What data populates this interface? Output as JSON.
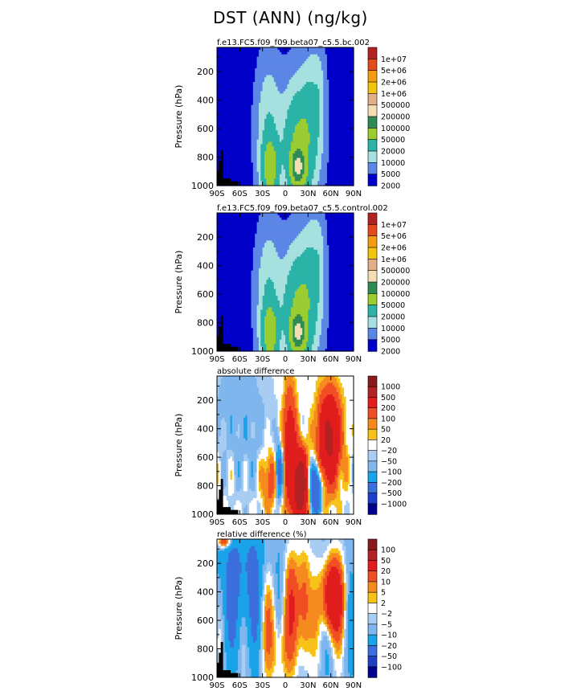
{
  "page": {
    "title": "DST (ANN) (ng/kg)"
  },
  "chart_data": [
    {
      "type": "heatmap",
      "title": "f.e13.FC5.f09_f09.beta07_c5.5.bc.002",
      "ylabel": "Pressure (hPa)",
      "xlim": [
        -90,
        90
      ],
      "ylim": [
        1000,
        30
      ],
      "x_ticks": [
        "90S",
        "60S",
        "30S",
        "0",
        "30N",
        "60N",
        "90N"
      ],
      "y_ticks": [
        "200",
        "400",
        "600",
        "800",
        "1000"
      ],
      "legend": {
        "placement": "right",
        "labels": [
          "1e+07",
          "5e+06",
          "2e+06",
          "1e+06",
          "500000",
          "200000",
          "100000",
          "50000",
          "20000",
          "10000",
          "5000",
          "2000"
        ],
        "colors": [
          "#b22222",
          "#e34a1c",
          "#f39c12",
          "#f1c40f",
          "#e0b08a",
          "#f5deb3",
          "#2e8b57",
          "#9acd32",
          "#2ab3a6",
          "#a6e1e0",
          "#5c86e6",
          "#0000c8"
        ]
      },
      "field": "base",
      "contour_levels": [
        2000,
        5000,
        10000,
        20000,
        50000,
        100000,
        200000,
        500000,
        1000000,
        2000000,
        5000000,
        10000000
      ]
    },
    {
      "type": "heatmap",
      "title": "f.e13.FC5.f09_f09.beta07_c5.5.control.002",
      "ylabel": "Pressure (hPa)",
      "xlim": [
        -90,
        90
      ],
      "ylim": [
        1000,
        30
      ],
      "x_ticks": [
        "90S",
        "60S",
        "30S",
        "0",
        "30N",
        "60N",
        "90N"
      ],
      "y_ticks": [
        "200",
        "400",
        "600",
        "800",
        "1000"
      ],
      "legend": {
        "placement": "right",
        "labels": [
          "1e+07",
          "5e+06",
          "2e+06",
          "1e+06",
          "500000",
          "200000",
          "100000",
          "50000",
          "20000",
          "10000",
          "5000",
          "2000"
        ],
        "colors": [
          "#b22222",
          "#e34a1c",
          "#f39c12",
          "#f1c40f",
          "#e0b08a",
          "#f5deb3",
          "#2e8b57",
          "#9acd32",
          "#2ab3a6",
          "#a6e1e0",
          "#5c86e6",
          "#0000c8"
        ]
      },
      "field": "base",
      "contour_levels": [
        2000,
        5000,
        10000,
        20000,
        50000,
        100000,
        200000,
        500000,
        1000000,
        2000000,
        5000000,
        10000000
      ]
    },
    {
      "type": "heatmap",
      "title": "absolute difference",
      "ylabel": "Pressure (hPa)",
      "xlim": [
        -90,
        90
      ],
      "ylim": [
        1000,
        30
      ],
      "x_ticks": [
        "90S",
        "60S",
        "30S",
        "0",
        "30N",
        "60N",
        "90N"
      ],
      "y_ticks": [
        "200",
        "400",
        "600",
        "800",
        "1000"
      ],
      "legend": {
        "placement": "right",
        "labels": [
          "1000",
          "500",
          "200",
          "100",
          "50",
          "20",
          "−20",
          "−50",
          "−100",
          "−200",
          "−500",
          "−1000"
        ],
        "colors": [
          "#8b1a1a",
          "#b22222",
          "#e11d1d",
          "#f04e23",
          "#f58b1f",
          "#f6c21b",
          "#ffffff",
          "#a9cdf2",
          "#7fb6ee",
          "#1aa3e8",
          "#3a6fdc",
          "#1f3fc8",
          "#00008b"
        ]
      },
      "field": "diff",
      "contour_levels": [
        -1000,
        -500,
        -200,
        -100,
        -50,
        -20,
        20,
        50,
        100,
        200,
        500,
        1000
      ]
    },
    {
      "type": "heatmap",
      "title": "relative difference (%)",
      "ylabel": "Pressure (hPa)",
      "xlim": [
        -90,
        90
      ],
      "ylim": [
        1000,
        30
      ],
      "x_ticks": [
        "90S",
        "60S",
        "30S",
        "0",
        "30N",
        "60N",
        "90N"
      ],
      "y_ticks": [
        "200",
        "400",
        "600",
        "800",
        "1000"
      ],
      "legend": {
        "placement": "right",
        "labels": [
          "100",
          "50",
          "20",
          "10",
          "5",
          "2",
          "−2",
          "−5",
          "−10",
          "−20",
          "−50",
          "−100"
        ],
        "colors": [
          "#8b1a1a",
          "#b22222",
          "#e11d1d",
          "#f04e23",
          "#f58b1f",
          "#f6c21b",
          "#ffffff",
          "#a9cdf2",
          "#7fb6ee",
          "#1aa3e8",
          "#3a6fdc",
          "#1f3fc8",
          "#00008b"
        ]
      },
      "field": "rel",
      "contour_levels": [
        -100,
        -50,
        -20,
        -10,
        -5,
        -2,
        2,
        5,
        10,
        20,
        50,
        100
      ]
    }
  ]
}
